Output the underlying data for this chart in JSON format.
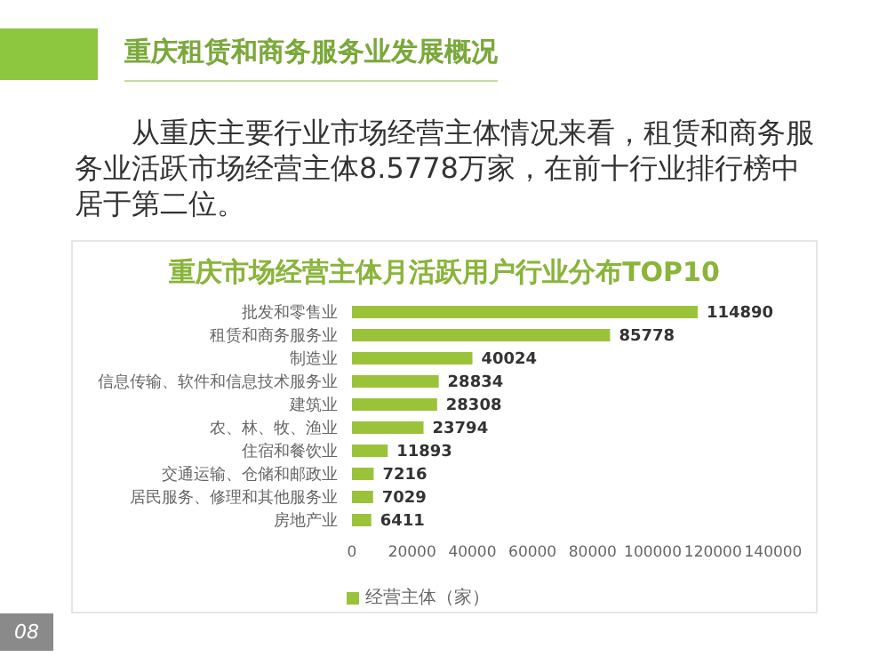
{
  "chart_data": {
    "type": "bar",
    "orientation": "horizontal",
    "title": "重庆市场经营主体月活跃用户行业分布TOP10",
    "annotations": [
      "重庆租赁和商务服务业发展概况",
      "从重庆主要行业市场经营主体情况来看，租赁和商务服务业活跃市场经营主体8.5778万家，在前十行业排行榜中居于第二位。",
      "08"
    ],
    "categories": [
      "批发和零售业",
      "租赁和商务服务业",
      "制造业",
      "信息传输、软件和信息技术服务业",
      "建筑业",
      "农、林、牧、渔业",
      "住宿和餐饮业",
      "交通运输、仓储和邮政业",
      "居民服务、修理和其他服务业",
      "房地产业"
    ],
    "series": [
      {
        "name": "经营主体（家）",
        "color": "#9bc33a",
        "values": [
          114890,
          85778,
          40024,
          28834,
          28308,
          23794,
          11893,
          7216,
          7029,
          6411
        ]
      }
    ],
    "xlim": [
      0,
      140000
    ],
    "xticks": [
      0,
      20000,
      40000,
      60000,
      80000,
      100000,
      120000,
      140000
    ],
    "data_labels": true,
    "grid": false,
    "legend": "bottom"
  }
}
